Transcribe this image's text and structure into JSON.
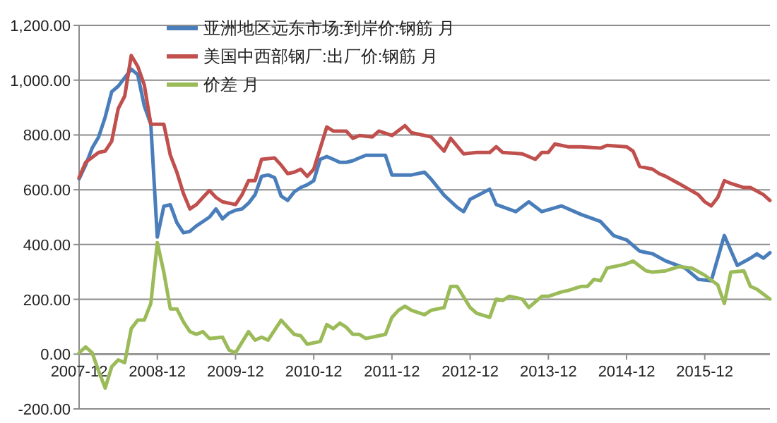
{
  "chart_data": {
    "type": "line",
    "xlim": [
      "2007-12",
      "2016-10"
    ],
    "xticks": [
      "2007-12",
      "2008-12",
      "2009-12",
      "2010-12",
      "2011-12",
      "2012-12",
      "2013-12",
      "2014-12",
      "2015-12"
    ],
    "ylim": [
      -200,
      1200
    ],
    "yticks": [
      {
        "value": -200,
        "label": "-200.00"
      },
      {
        "value": 0,
        "label": "0.00"
      },
      {
        "value": 200,
        "label": "200.00"
      },
      {
        "value": 400,
        "label": "400.00"
      },
      {
        "value": 600,
        "label": "600.00"
      },
      {
        "value": 800,
        "label": "800.00"
      },
      {
        "value": 1000,
        "label": "1,000.00"
      },
      {
        "value": 1200,
        "label": "1,200.00"
      }
    ],
    "grid": "y",
    "legend": "top left",
    "marker": "none",
    "line_style": "solid",
    "series": [
      {
        "name": "亚洲地区远东市场:到岸价:钢筋 月",
        "color": "#4a7ebb",
        "x": [
          "2007-12",
          "2008-01",
          "2008-02",
          "2008-03",
          "2008-04",
          "2008-05",
          "2008-06",
          "2008-07",
          "2008-08",
          "2008-09",
          "2008-10",
          "2008-11",
          "2008-12",
          "2009-01",
          "2009-02",
          "2009-03",
          "2009-04",
          "2009-05",
          "2009-06",
          "2009-07",
          "2009-08",
          "2009-09",
          "2009-10",
          "2009-11",
          "2009-12",
          "2010-01",
          "2010-02",
          "2010-03",
          "2010-04",
          "2010-05",
          "2010-06",
          "2010-07",
          "2010-08",
          "2010-09",
          "2010-10",
          "2010-11",
          "2010-12",
          "2011-01",
          "2011-02",
          "2011-03",
          "2011-04",
          "2011-05",
          "2011-06",
          "2011-07",
          "2011-08",
          "2011-10",
          "2011-11",
          "2011-12",
          "2012-03",
          "2012-05",
          "2012-06",
          "2012-08",
          "2012-10",
          "2012-11",
          "2012-12",
          "2013-03",
          "2013-04",
          "2013-07",
          "2013-09",
          "2013-11",
          "2014-02",
          "2014-05",
          "2014-08",
          "2014-10",
          "2014-12",
          "2015-02",
          "2015-04",
          "2015-06",
          "2015-09",
          "2015-11",
          "2016-01",
          "2016-03",
          "2016-05",
          "2016-07",
          "2016-08",
          "2016-09",
          "2016-10"
        ],
        "values": [
          640,
          690,
          752,
          793,
          865,
          958,
          978,
          1009,
          1040,
          1020,
          906,
          839,
          427,
          540,
          545,
          480,
          443,
          448,
          468,
          484,
          500,
          530,
          494,
          515,
          525,
          530,
          551,
          582,
          649,
          654,
          644,
          577,
          561,
          592,
          608,
          618,
          633,
          711,
          721,
          711,
          700,
          700,
          706,
          716,
          726,
          726,
          726,
          654,
          654,
          664,
          639,
          580,
          536,
          520,
          565,
          602,
          546,
          520,
          556,
          520,
          541,
          510,
          484,
          433,
          417,
          376,
          366,
          340,
          314,
          273,
          268,
          433,
          324,
          350,
          366,
          350,
          370
        ]
      },
      {
        "name": "美国中西部钢厂:出厂价:钢筋 月",
        "color": "#c0504d",
        "x": [
          "2007-12",
          "2008-01",
          "2008-03",
          "2008-04",
          "2008-05",
          "2008-06",
          "2008-07",
          "2008-08",
          "2008-09",
          "2008-10",
          "2008-11",
          "2009-01",
          "2009-02",
          "2009-03",
          "2009-04",
          "2009-05",
          "2009-06",
          "2009-07",
          "2009-08",
          "2009-09",
          "2009-10",
          "2009-12",
          "2010-01",
          "2010-02",
          "2010-03",
          "2010-04",
          "2010-06",
          "2010-07",
          "2010-08",
          "2010-09",
          "2010-10",
          "2010-11",
          "2010-12",
          "2011-02",
          "2011-03",
          "2011-04",
          "2011-05",
          "2011-06",
          "2011-07",
          "2011-09",
          "2011-10",
          "2011-12",
          "2012-02",
          "2012-03",
          "2012-06",
          "2012-08",
          "2012-09",
          "2012-11",
          "2013-01",
          "2013-03",
          "2013-04",
          "2013-05",
          "2013-08",
          "2013-10",
          "2013-11",
          "2013-12",
          "2014-01",
          "2014-03",
          "2014-05",
          "2014-08",
          "2014-09",
          "2014-12",
          "2015-01",
          "2015-02",
          "2015-04",
          "2015-05",
          "2015-06",
          "2015-08",
          "2015-11",
          "2015-12",
          "2016-01",
          "2016-02",
          "2016-03",
          "2016-04",
          "2016-06",
          "2016-07",
          "2016-09",
          "2016-10"
        ],
        "values": [
          644,
          700,
          736,
          741,
          777,
          896,
          942,
          1090,
          1050,
          983,
          839,
          839,
          726,
          664,
          587,
          530,
          546,
          572,
          597,
          572,
          556,
          546,
          582,
          633,
          633,
          711,
          716,
          690,
          659,
          664,
          675,
          649,
          675,
          829,
          814,
          814,
          814,
          788,
          798,
          793,
          814,
          798,
          834,
          808,
          793,
          741,
          788,
          731,
          736,
          736,
          757,
          736,
          731,
          711,
          736,
          736,
          767,
          757,
          757,
          752,
          762,
          757,
          741,
          685,
          675,
          659,
          649,
          623,
          582,
          556,
          541,
          572,
          633,
          623,
          608,
          608,
          582,
          561
        ]
      },
      {
        "name": "价差 月",
        "color": "#9bbb59",
        "x": [
          "2007-12",
          "2008-01",
          "2008-02",
          "2008-03",
          "2008-04",
          "2008-05",
          "2008-06",
          "2008-07",
          "2008-08",
          "2008-09",
          "2008-10",
          "2008-11",
          "2008-12",
          "2009-01",
          "2009-02",
          "2009-03",
          "2009-04",
          "2009-05",
          "2009-06",
          "2009-07",
          "2009-08",
          "2009-10",
          "2009-11",
          "2009-12",
          "2010-02",
          "2010-03",
          "2010-04",
          "2010-05",
          "2010-07",
          "2010-08",
          "2010-09",
          "2010-10",
          "2010-11",
          "2011-01",
          "2011-02",
          "2011-03",
          "2011-04",
          "2011-05",
          "2011-06",
          "2011-07",
          "2011-08",
          "2011-10",
          "2011-11",
          "2011-12",
          "2012-01",
          "2012-02",
          "2012-03",
          "2012-05",
          "2012-06",
          "2012-08",
          "2012-09",
          "2012-10",
          "2012-12",
          "2013-01",
          "2013-03",
          "2013-04",
          "2013-05",
          "2013-06",
          "2013-08",
          "2013-09",
          "2013-11",
          "2013-12",
          "2014-02",
          "2014-03",
          "2014-05",
          "2014-06",
          "2014-07",
          "2014-08",
          "2014-09",
          "2014-11",
          "2014-12",
          "2015-01",
          "2015-03",
          "2015-04",
          "2015-06",
          "2015-08",
          "2015-10",
          "2015-12",
          "2016-02",
          "2016-03",
          "2016-04",
          "2016-06",
          "2016-07",
          "2016-08",
          "2016-10"
        ],
        "values": [
          5,
          26,
          5,
          -62,
          -124,
          -46,
          -21,
          -31,
          93,
          124,
          124,
          185,
          407,
          299,
          165,
          165,
          118,
          82,
          72,
          82,
          57,
          62,
          15,
          5,
          82,
          51,
          62,
          51,
          124,
          98,
          72,
          67,
          36,
          46,
          108,
          93,
          113,
          98,
          72,
          72,
          57,
          67,
          72,
          134,
          160,
          175,
          160,
          144,
          160,
          170,
          247,
          247,
          170,
          149,
          134,
          201,
          196,
          211,
          201,
          170,
          211,
          211,
          227,
          232,
          247,
          247,
          273,
          268,
          314,
          324,
          330,
          340,
          304,
          299,
          304,
          319,
          314,
          288,
          252,
          185,
          299,
          304,
          247,
          237,
          201
        ]
      }
    ]
  }
}
